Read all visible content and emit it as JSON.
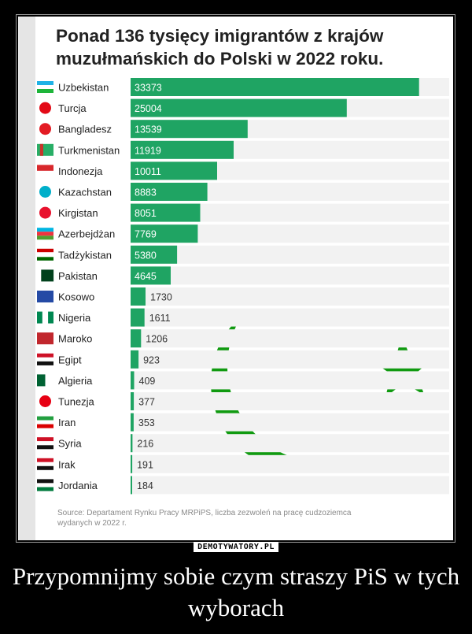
{
  "chart_data": {
    "type": "bar",
    "orientation": "horizontal",
    "title": "Ponad 136 tysięcy imigrantów z krajów muzułmańskich do Polski w 2022 roku.",
    "title_lines": [
      "Ponad 136 tysięcy imigrantów z krajów",
      "muzułmańskich do Polski w 2022 roku."
    ],
    "categories": [
      "Uzbekistan",
      "Turcja",
      "Bangladesz",
      "Turkmenistan",
      "Indonezja",
      "Kazachstan",
      "Kirgistan",
      "Azerbejdżan",
      "Tadżykistan",
      "Pakistan",
      "Kosowo",
      "Nigeria",
      "Maroko",
      "Egipt",
      "Algieria",
      "Tunezja",
      "Iran",
      "Syria",
      "Irak",
      "Jordania"
    ],
    "values": [
      33373,
      25004,
      13539,
      11919,
      10011,
      8883,
      8051,
      7769,
      5380,
      4645,
      1730,
      1611,
      1206,
      923,
      409,
      377,
      353,
      216,
      191,
      184
    ],
    "xlim": [
      0,
      36400
    ],
    "grid": false,
    "bar_color": "#1fa463",
    "source_lines": [
      "Source: Departament Rynku Pracy MRPiPS, liczba zezwoleń na pracę cudzoziemca",
      "wydanych w 2022 r."
    ]
  },
  "decoration": {
    "symbol": "crescent-and-star",
    "color": "#109a10"
  },
  "watermark": "DEMOTYWATORY.PL",
  "caption": "Przypomnijmy sobie czym straszy PiS w tych wyborach"
}
